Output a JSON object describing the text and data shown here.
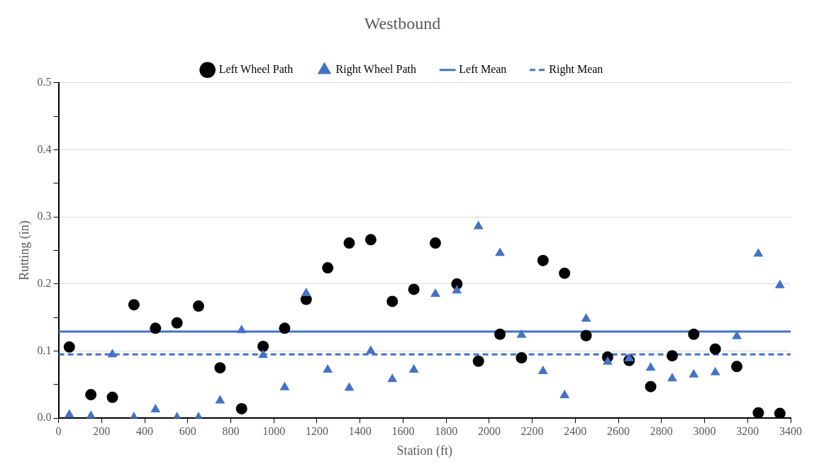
{
  "chart_data": {
    "type": "scatter",
    "title": "Westbound",
    "xlabel": "Station (ft)",
    "ylabel": "Rutting (in)",
    "x": [
      50,
      150,
      250,
      350,
      450,
      550,
      650,
      750,
      850,
      950,
      1050,
      1150,
      1250,
      1350,
      1450,
      1550,
      1650,
      1750,
      1850,
      1950,
      2050,
      2150,
      2250,
      2350,
      2450,
      2550,
      2650,
      2750,
      2850,
      2950,
      3050,
      3150,
      3250,
      3350
    ],
    "series": [
      {
        "name": "Left Wheel Path",
        "color": "#000000",
        "marker": "circle",
        "values": [
          0.106,
          0.035,
          0.031,
          0.169,
          0.134,
          0.142,
          0.167,
          0.075,
          0.014,
          0.107,
          0.134,
          0.177,
          0.224,
          0.261,
          0.266,
          0.174,
          0.192,
          0.261,
          0.2,
          0.085,
          0.125,
          0.09,
          0.235,
          0.216,
          0.123,
          0.091,
          0.086,
          0.047,
          0.093,
          0.125,
          0.103,
          0.077,
          0.008,
          0.007
        ]
      },
      {
        "name": "Right Wheel Path",
        "color": "#4472c4",
        "marker": "triangle",
        "values": [
          0.005,
          0.003,
          0.095,
          0.001,
          0.013,
          0.001,
          0.001,
          0.026,
          0.131,
          0.094,
          0.046,
          0.186,
          0.072,
          0.045,
          0.1,
          0.058,
          0.072,
          0.185,
          0.19,
          0.286,
          0.246,
          0.124,
          0.07,
          0.034,
          0.148,
          0.084,
          0.089,
          0.075,
          0.059,
          0.065,
          0.068,
          0.122,
          0.245,
          0.198
        ]
      }
    ],
    "ref_lines": [
      {
        "axis": "y",
        "value": 0.129,
        "label": "Left Mean",
        "color": "#4472c4",
        "line_style": "solid"
      },
      {
        "axis": "y",
        "value": 0.095,
        "label": "Right Mean",
        "color": "#4472c4",
        "line_style": "dashed"
      }
    ],
    "xlim": [
      0,
      3400
    ],
    "xticks": [
      0,
      200,
      400,
      600,
      800,
      1000,
      1200,
      1400,
      1600,
      1800,
      2000,
      2200,
      2400,
      2600,
      2800,
      3000,
      3200,
      3400
    ],
    "ylim": [
      0,
      0.5
    ],
    "yticks": [
      {
        "value": 0,
        "label": "0.0"
      },
      {
        "value": 0.05,
        "label": null
      },
      0.1,
      {
        "value": 0.15,
        "label": null
      },
      0.2,
      {
        "value": 0.25,
        "label": null
      },
      0.3,
      {
        "value": 0.35,
        "label": null
      },
      0.4,
      {
        "value": 0.45,
        "label": null
      },
      0.5
    ],
    "grid": "y",
    "legend": "top"
  }
}
